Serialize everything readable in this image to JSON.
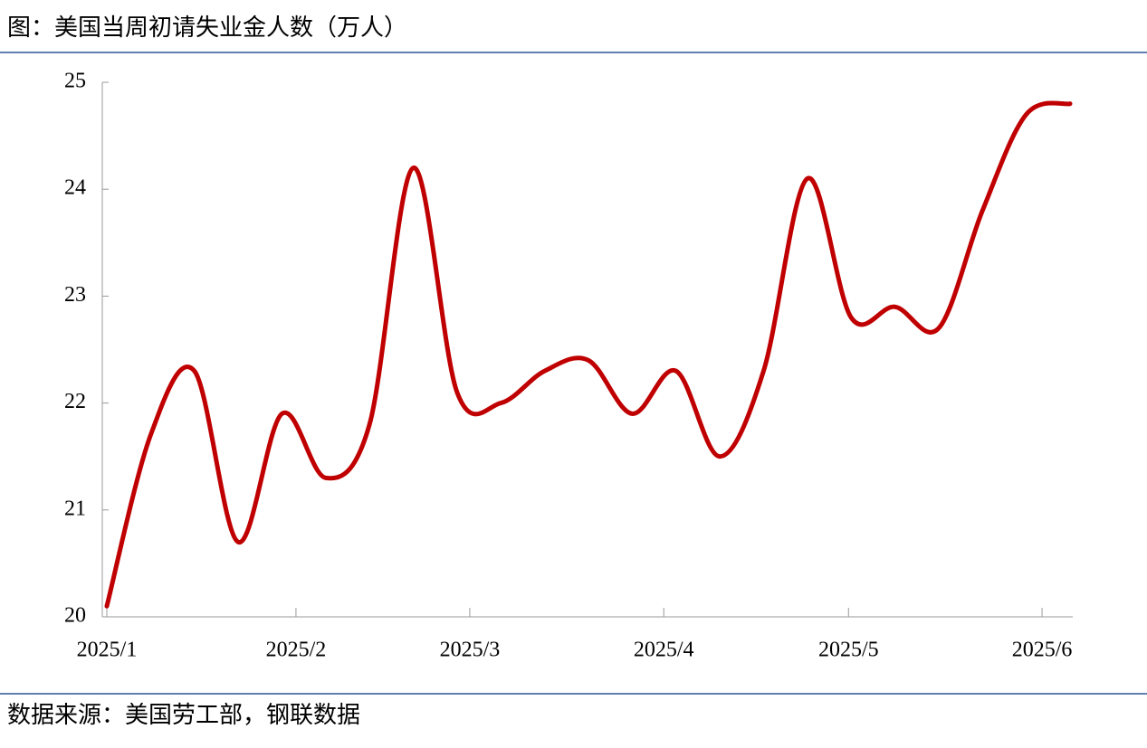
{
  "chart_data": {
    "type": "line",
    "title": "图：美国当周初请失业金人数（万人）",
    "source": "数据来源：美国劳工部，钢联数据",
    "categories": [
      null,
      null,
      null,
      null,
      null,
      null,
      null,
      null,
      null,
      null,
      null,
      null,
      null,
      null,
      null,
      null,
      null,
      null,
      null,
      null,
      null,
      null,
      null
    ],
    "xlim": [
      0,
      22
    ],
    "xticks": [
      {
        "value": 0,
        "label": "2025/1"
      },
      {
        "value": 4.32,
        "label": "2025/2"
      },
      {
        "value": 8.29,
        "label": "2025/3"
      },
      {
        "value": 12.72,
        "label": "2025/4"
      },
      {
        "value": 16.94,
        "label": "2025/5"
      },
      {
        "value": 21.36,
        "label": "2025/6"
      }
    ],
    "series": [
      {
        "color": "#c00000",
        "values": [
          20.1,
          21.7,
          22.3,
          20.7,
          21.9,
          21.3,
          21.8,
          24.2,
          22.1,
          22.0,
          22.3,
          22.4,
          21.9,
          22.3,
          21.5,
          22.3,
          24.1,
          22.8,
          22.9,
          22.7,
          23.8,
          24.7,
          24.8
        ]
      }
    ],
    "ylim": [
      20,
      25
    ],
    "yticks": [
      20,
      21,
      22,
      23,
      24,
      25
    ]
  }
}
